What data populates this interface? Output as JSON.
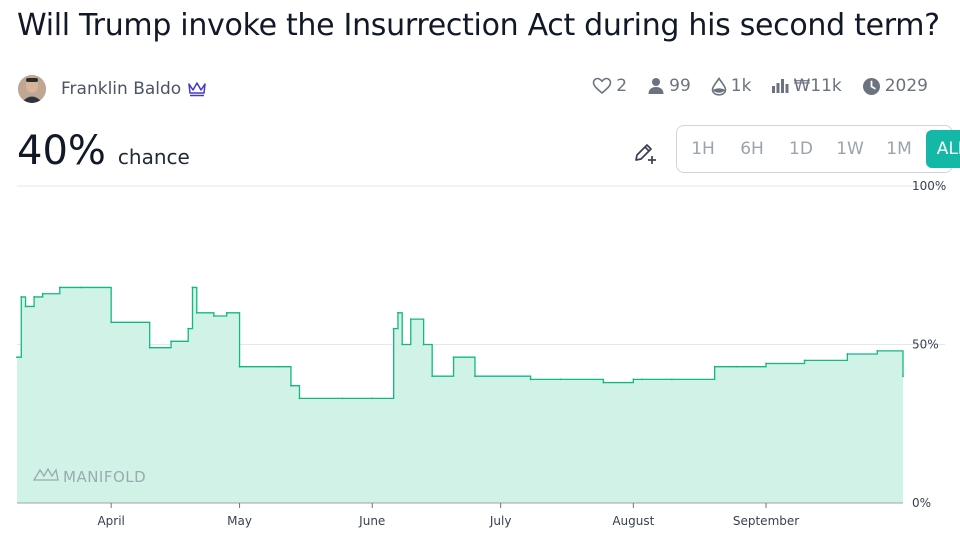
{
  "market": {
    "title": "Will Trump invoke the Insurrection Act during his second term?",
    "author": "Franklin Baldo",
    "probability": "40%",
    "probability_label": "chance"
  },
  "stats": {
    "likes": "2",
    "traders": "99",
    "liquidity": "1k",
    "volume": "₩11k",
    "close_year": "2029"
  },
  "icons": [
    "crown-icon",
    "heart-icon",
    "person-icon",
    "droplet-icon",
    "bar-chart-icon",
    "clock-icon",
    "pencil-plus-icon"
  ],
  "range": {
    "options": [
      "1H",
      "6H",
      "1D",
      "1W",
      "1M",
      "ALL"
    ],
    "selected": "ALL"
  },
  "colors": {
    "accent": "#14b8a6",
    "line": "#11b981",
    "fill": "#d1f2e6",
    "brand": "#4338ca"
  },
  "watermark": "MANIFOLD",
  "chart_data": {
    "type": "area",
    "ylim": [
      0,
      100
    ],
    "y_ticks": [
      "100%",
      "50%",
      "0%"
    ],
    "x_ticks": [
      "April",
      "May",
      "June",
      "July",
      "August",
      "September"
    ],
    "step": true,
    "x": [
      "2025-03-10",
      "2025-03-11",
      "2025-03-12",
      "2025-03-14",
      "2025-03-16",
      "2025-03-20",
      "2025-03-25",
      "2025-04-01",
      "2025-04-10",
      "2025-04-15",
      "2025-04-19",
      "2025-04-20",
      "2025-04-21",
      "2025-04-25",
      "2025-04-28",
      "2025-05-01",
      "2025-05-10",
      "2025-05-13",
      "2025-05-15",
      "2025-05-25",
      "2025-06-01",
      "2025-06-06",
      "2025-06-07",
      "2025-06-08",
      "2025-06-10",
      "2025-06-13",
      "2025-06-15",
      "2025-06-20",
      "2025-06-25",
      "2025-07-08",
      "2025-07-15",
      "2025-07-25",
      "2025-08-01",
      "2025-08-03",
      "2025-08-10",
      "2025-08-20",
      "2025-08-25",
      "2025-09-01",
      "2025-09-10",
      "2025-09-20",
      "2025-09-27",
      "2025-10-03"
    ],
    "y": [
      46,
      65,
      62,
      65,
      66,
      68,
      68,
      57,
      49,
      51,
      55,
      68,
      60,
      59,
      60,
      43,
      43,
      37,
      33,
      33,
      33,
      55,
      60,
      50,
      58,
      50,
      40,
      46,
      40,
      39,
      39,
      38,
      39,
      39,
      39,
      43,
      43,
      44,
      45,
      47,
      48,
      40
    ]
  }
}
